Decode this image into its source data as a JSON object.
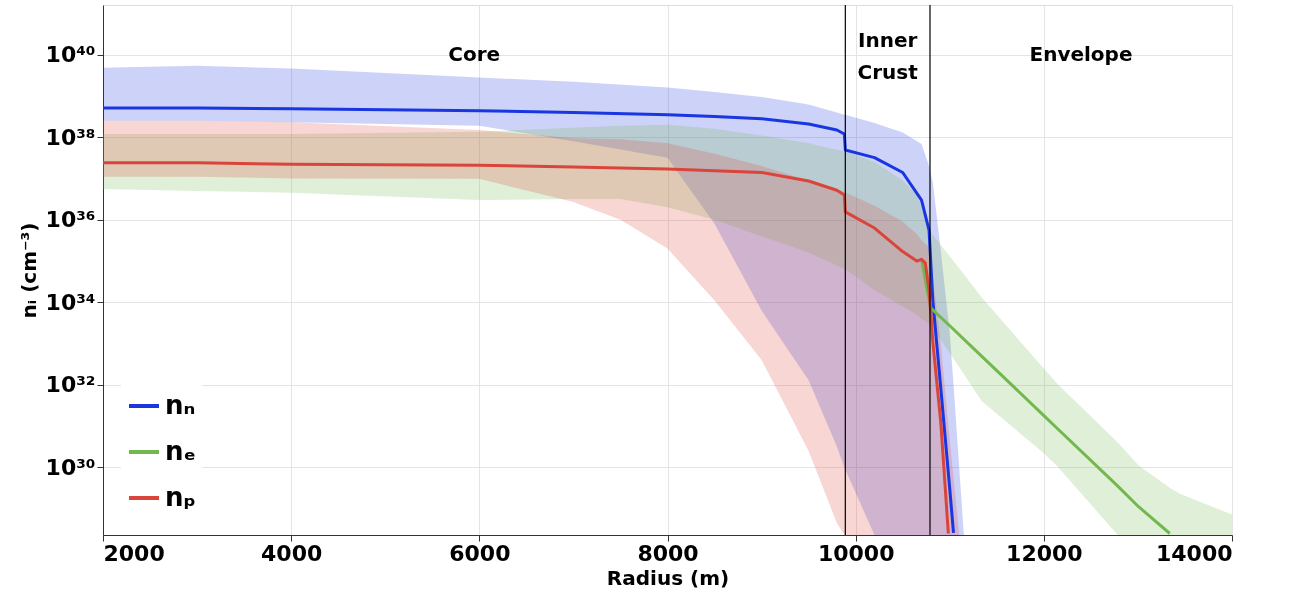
{
  "chart_data": {
    "type": "line",
    "xlabel": "Radius (m)",
    "ylabel": "nᵢ (cm⁻³)",
    "log": "y",
    "grid": true,
    "legend": "bottom left",
    "xlim": [
      2000,
      14000
    ],
    "xticks": [
      2000,
      4000,
      6000,
      8000,
      10000,
      12000,
      14000
    ],
    "ylim": [
      2.3e+28,
      1.6e+41
    ],
    "yticks": [
      {
        "value": 1e+30,
        "label": "10³⁰"
      },
      {
        "value": 1e+32,
        "label": "10³²"
      },
      {
        "value": 1e+34,
        "label": "10³⁴"
      },
      {
        "value": 1e+36,
        "label": "10³⁶"
      },
      {
        "value": 1e+38,
        "label": "10³⁸"
      },
      {
        "value": 1e+40,
        "label": "10⁴⁰"
      }
    ],
    "series": [
      {
        "name": "nₙ",
        "color": "#1a36e0",
        "x": [
          2000,
          3000,
          4000,
          6000,
          7000,
          8000,
          8500,
          9000,
          9500,
          9800,
          9880,
          9890,
          10200,
          10500,
          10700,
          10780,
          10820,
          10900,
          11000,
          11040,
          11150
        ],
        "values": [
          5.1e+38,
          5.1e+38,
          4.9e+38,
          4.4e+38,
          4e+38,
          3.5e+38,
          3.2e+38,
          2.8e+38,
          2.1e+38,
          1.5e+38,
          1.2e+38,
          4.9e+37,
          3.2e+37,
          1.4e+37,
          3e+36,
          5.6e+35,
          1.1e+34,
          1.1e+32,
          3e+29,
          2.6e+28,
          null
        ],
        "upper": [
          4.8e+39,
          5.4e+39,
          4.6e+39,
          2.8e+39,
          2.2e+39,
          1.6e+39,
          1.25e+39,
          9.5e+38,
          6.2e+38,
          4e+38,
          3.5e+38,
          3.5e+38,
          2.2e+38,
          1.3e+38,
          6.9e+37,
          2e+37,
          8e+36,
          2.2e+35,
          1.8e+33,
          1e+32,
          2.3e+28
        ],
        "lower": [
          2.5e+38,
          2.5e+38,
          2.3e+38,
          1.9e+38,
          8e+37,
          3.2e+37,
          8e+35,
          6.3e+33,
          1.3e+32,
          3.2e+30,
          1e+30,
          8.9e+29,
          2.3e+28,
          2.3e+28,
          2.3e+28,
          2.3e+28,
          2.3e+28,
          2.3e+28,
          2.3e+28,
          2.3e+28,
          2.3e+28
        ]
      },
      {
        "name": "nₑ",
        "color": "#72b84f",
        "x": [
          2000,
          3000,
          4000,
          6000,
          7000,
          7500,
          8000,
          8500,
          9000,
          9500,
          9800,
          9880,
          9890,
          10200,
          10500,
          10650,
          10700,
          10760,
          10800,
          11000,
          11341,
          12000,
          12138,
          12786,
          13010,
          13339,
          13445,
          14000
        ],
        "values": [
          null,
          null,
          null,
          null,
          null,
          null,
          null,
          null,
          null,
          null,
          null,
          null,
          null,
          null,
          null,
          null,
          1.1e+35,
          2e+34,
          7.2e+33,
          2.7e+33,
          4.9e+32,
          1.8e+31,
          9e+30,
          3.5e+29,
          1.1e+29,
          2.5e+28,
          null,
          null
        ],
        "upper": [
          1.2e+38,
          1.2e+38,
          1.2e+38,
          1.35e+38,
          1.7e+38,
          1.9e+38,
          2e+38,
          1.6e+38,
          1.1e+38,
          7.1e+37,
          5e+37,
          4.5e+37,
          4.5e+37,
          2.5e+37,
          8.9e+36,
          4e+36,
          2e+36,
          7.9e+35,
          5e+35,
          1.3e+35,
          1.3e+34,
          2.5e+32,
          1.1e+32,
          4e+30,
          1.1e+30,
          3.2e+29,
          2.3e+29,
          7.2e+28
        ],
        "lower": [
          5.6e+36,
          5e+36,
          4.5e+36,
          3e+36,
          3.2e+36,
          3.2e+36,
          2e+36,
          1e+36,
          4e+35,
          1.6e+35,
          7.9e+34,
          6.3e+34,
          6.3e+34,
          2e+34,
          7.9e+33,
          5e+33,
          4e+33,
          3.2e+33,
          2.8e+33,
          5.9e+32,
          4e+31,
          2.2e+30,
          1.1e+30,
          2.3e+28,
          2.3e+28,
          2.3e+28,
          2.3e+28,
          2.3e+28
        ]
      },
      {
        "name": "nₚ",
        "color": "#d9453a",
        "x": [
          2000,
          3000,
          4000,
          6000,
          7000,
          7500,
          8000,
          8500,
          9000,
          9500,
          9800,
          9880,
          9890,
          10200,
          10500,
          10650,
          10700,
          10740,
          10780,
          10820,
          10905,
          10985,
          11100
        ],
        "values": [
          2.4e+37,
          2.4e+37,
          2.2e+37,
          2.1e+37,
          1.9e+37,
          1.8e+37,
          1.7e+37,
          1.55e+37,
          1.4e+37,
          8.7e+36,
          5.2e+36,
          4e+36,
          1.55e+36,
          6.3e+35,
          1.7e+35,
          1e+35,
          1.1e+35,
          8.9e+34,
          2e+34,
          1.1e+33,
          1.2e+31,
          2.5e+28,
          null
        ],
        "upper": [
          2.5e+38,
          2.5e+38,
          2.3e+38,
          1.5e+38,
          9.5e+37,
          8.9e+37,
          7.1e+37,
          4e+37,
          2e+37,
          8.9e+36,
          5.6e+36,
          4.7e+36,
          4.6e+36,
          2.2e+36,
          8.9e+35,
          4.5e+35,
          3.2e+35,
          2.6e+35,
          2.2e+35,
          4e+34,
          1e+33,
          1e+31,
          2.5e+28
        ],
        "lower": [
          1.1e+37,
          1.1e+37,
          1e+37,
          9.8e+36,
          2.7e+36,
          1e+36,
          2e+35,
          1.1e+34,
          4e+32,
          2.5e+30,
          4.5e+28,
          2.3e+28,
          2.3e+28,
          2.3e+28,
          2.3e+28,
          2.3e+28,
          2.3e+28,
          2.3e+28,
          2.3e+28,
          2.3e+28,
          2.3e+28,
          2.3e+28,
          2.3e+28
        ]
      }
    ],
    "ref_lines": [
      {
        "axis": "x",
        "value": 9890,
        "color": "#000000"
      },
      {
        "axis": "x",
        "value": 10790,
        "color": "#000000"
      }
    ],
    "annotations": [
      "Core",
      "Inner\nCrust",
      "Envelope"
    ],
    "line_style": "solid"
  }
}
